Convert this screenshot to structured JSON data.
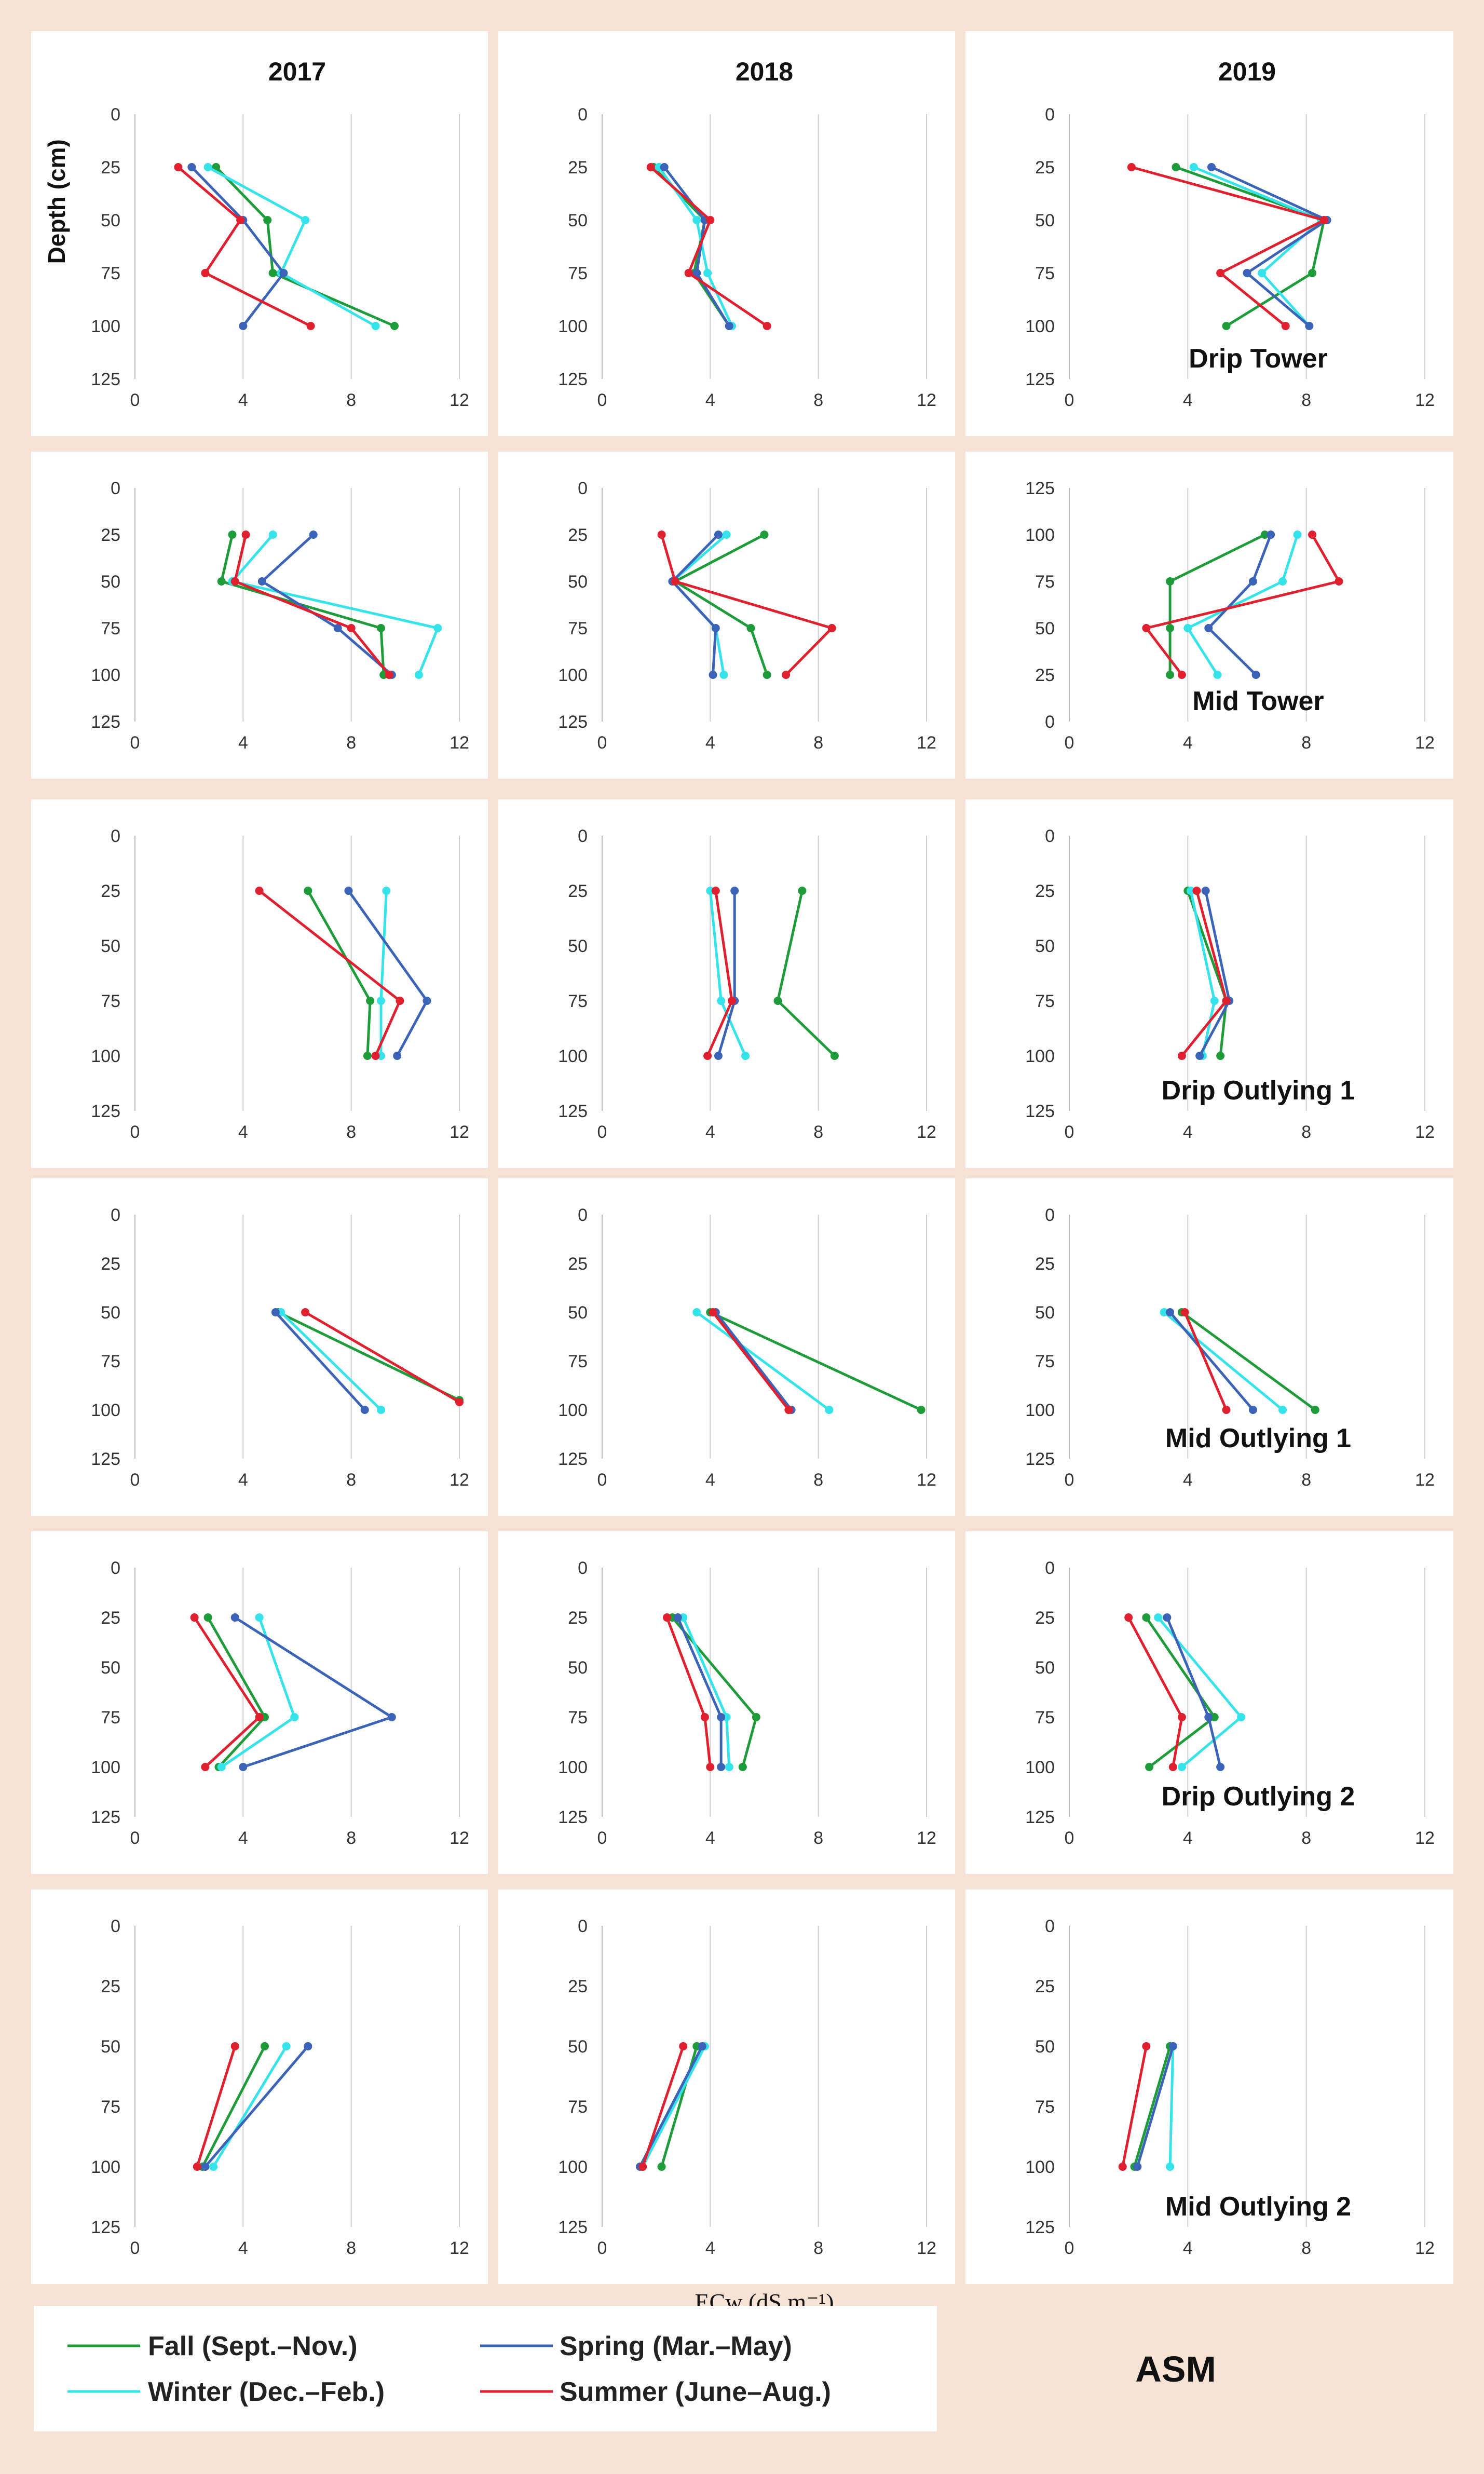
{
  "chart_data": {
    "type": "line",
    "title": "ASM",
    "xlabel": "ECw  (dS.m⁻¹)",
    "ylabel": "Depth (cm)",
    "xlim": [
      0,
      12
    ],
    "xticks": [
      "0",
      "4",
      "8",
      "12"
    ],
    "yticks": [
      "0",
      "25",
      "50",
      "75",
      "100",
      "125"
    ],
    "yticks_inverted": [
      "125",
      "100",
      "75",
      "50",
      "25",
      "0"
    ],
    "years": [
      "2017",
      "2018",
      "2019"
    ],
    "series_names": [
      "Fall (Sept.–Nov.)",
      "Winter (Dec.–Feb.)",
      "Spring (Mar.–May)",
      "Summer (June–Aug.)"
    ],
    "colors": {
      "fall": "#1e9c3a",
      "winter": "#35e3ea",
      "spring": "#3b64b8",
      "summer": "#e0202e"
    },
    "sites": [
      "Drip Tower",
      "Mid Tower",
      "Drip Outlying 1",
      "Mid Outlying 1",
      "Drip Outlying 2",
      "Mid Outlying 2"
    ],
    "panels": [
      {
        "site": "Drip Tower",
        "year": "2017",
        "label": "",
        "fall": [
          [
            3.0,
            25
          ],
          [
            4.9,
            50
          ],
          [
            5.1,
            75
          ],
          [
            9.6,
            100
          ]
        ],
        "winter": [
          [
            2.7,
            25
          ],
          [
            6.3,
            50
          ],
          [
            5.4,
            75
          ],
          [
            8.9,
            100
          ]
        ],
        "spring": [
          [
            2.1,
            25
          ],
          [
            4.0,
            50
          ],
          [
            5.5,
            75
          ],
          [
            4.0,
            100
          ]
        ],
        "summer": [
          [
            1.6,
            25
          ],
          [
            3.9,
            50
          ],
          [
            2.6,
            75
          ],
          [
            6.5,
            100
          ]
        ]
      },
      {
        "site": "Drip Tower",
        "year": "2018",
        "label": "",
        "fall": [
          [
            1.9,
            25
          ],
          [
            3.8,
            50
          ],
          [
            3.4,
            75
          ],
          [
            4.7,
            100
          ]
        ],
        "winter": [
          [
            2.1,
            25
          ],
          [
            3.5,
            50
          ],
          [
            3.9,
            75
          ],
          [
            4.8,
            100
          ]
        ],
        "spring": [
          [
            2.3,
            25
          ],
          [
            3.8,
            50
          ],
          [
            3.5,
            75
          ],
          [
            4.7,
            100
          ]
        ],
        "summer": [
          [
            1.8,
            25
          ],
          [
            4.0,
            50
          ],
          [
            3.2,
            75
          ],
          [
            6.1,
            100
          ]
        ]
      },
      {
        "site": "Drip Tower",
        "year": "2019",
        "label": "Drip Tower",
        "fall": [
          [
            3.6,
            25
          ],
          [
            8.6,
            50
          ],
          [
            8.2,
            75
          ],
          [
            5.3,
            100
          ]
        ],
        "winter": [
          [
            4.2,
            25
          ],
          [
            8.5,
            50
          ],
          [
            6.5,
            75
          ],
          [
            8.1,
            100
          ]
        ],
        "spring": [
          [
            4.8,
            25
          ],
          [
            8.7,
            50
          ],
          [
            6.0,
            75
          ],
          [
            8.1,
            100
          ]
        ],
        "summer": [
          [
            2.1,
            25
          ],
          [
            8.6,
            50
          ],
          [
            5.1,
            75
          ],
          [
            7.3,
            100
          ]
        ]
      },
      {
        "site": "Mid Tower",
        "year": "2017",
        "label": "",
        "fall": [
          [
            3.6,
            25
          ],
          [
            3.2,
            50
          ],
          [
            9.1,
            75
          ],
          [
            9.2,
            100
          ]
        ],
        "winter": [
          [
            5.1,
            25
          ],
          [
            3.6,
            50
          ],
          [
            11.2,
            75
          ],
          [
            10.5,
            100
          ]
        ],
        "spring": [
          [
            6.6,
            25
          ],
          [
            4.7,
            50
          ],
          [
            7.5,
            75
          ],
          [
            9.5,
            100
          ]
        ],
        "summer": [
          [
            4.1,
            25
          ],
          [
            3.7,
            50
          ],
          [
            8.0,
            75
          ],
          [
            9.4,
            100
          ]
        ]
      },
      {
        "site": "Mid Tower",
        "year": "2018",
        "label": "",
        "fall": [
          [
            6.0,
            25
          ],
          [
            2.7,
            50
          ],
          [
            5.5,
            75
          ],
          [
            6.1,
            100
          ]
        ],
        "winter": [
          [
            4.6,
            25
          ],
          [
            2.6,
            50
          ],
          [
            4.2,
            75
          ],
          [
            4.5,
            100
          ]
        ],
        "spring": [
          [
            4.3,
            25
          ],
          [
            2.6,
            50
          ],
          [
            4.2,
            75
          ],
          [
            4.1,
            100
          ]
        ],
        "summer": [
          [
            2.2,
            25
          ],
          [
            2.7,
            50
          ],
          [
            8.5,
            75
          ],
          [
            6.8,
            100
          ]
        ]
      },
      {
        "site": "Mid Tower",
        "year": "2019",
        "label": "Mid Tower",
        "inverted": true,
        "fall": [
          [
            3.4,
            25
          ],
          [
            3.4,
            50
          ],
          [
            3.4,
            75
          ],
          [
            6.6,
            100
          ]
        ],
        "winter": [
          [
            5.0,
            25
          ],
          [
            4.0,
            50
          ],
          [
            7.2,
            75
          ],
          [
            7.7,
            100
          ]
        ],
        "spring": [
          [
            6.3,
            25
          ],
          [
            4.7,
            50
          ],
          [
            6.2,
            75
          ],
          [
            6.8,
            100
          ]
        ],
        "summer": [
          [
            3.8,
            25
          ],
          [
            2.6,
            50
          ],
          [
            9.1,
            75
          ],
          [
            8.2,
            100
          ]
        ]
      },
      {
        "site": "Drip Outlying 1",
        "year": "2017",
        "label": "",
        "fall": [
          [
            6.4,
            25
          ],
          [
            8.7,
            75
          ],
          [
            8.6,
            100
          ]
        ],
        "winter": [
          [
            9.3,
            25
          ],
          [
            9.1,
            75
          ],
          [
            9.1,
            100
          ]
        ],
        "spring": [
          [
            7.9,
            25
          ],
          [
            10.8,
            75
          ],
          [
            9.7,
            100
          ]
        ],
        "summer": [
          [
            4.6,
            25
          ],
          [
            9.8,
            75
          ],
          [
            8.9,
            100
          ]
        ]
      },
      {
        "site": "Drip Outlying 1",
        "year": "2018",
        "label": "",
        "fall": [
          [
            7.4,
            25
          ],
          [
            6.5,
            75
          ],
          [
            8.6,
            100
          ]
        ],
        "winter": [
          [
            4.0,
            25
          ],
          [
            4.4,
            75
          ],
          [
            5.3,
            100
          ]
        ],
        "spring": [
          [
            4.9,
            25
          ],
          [
            4.9,
            75
          ],
          [
            4.3,
            100
          ]
        ],
        "summer": [
          [
            4.2,
            25
          ],
          [
            4.8,
            75
          ],
          [
            3.9,
            100
          ]
        ]
      },
      {
        "site": "Drip Outlying 1",
        "year": "2019",
        "label": "Drip Outlying 1",
        "fall": [
          [
            4.0,
            25
          ],
          [
            5.3,
            75
          ],
          [
            5.1,
            100
          ]
        ],
        "winter": [
          [
            4.1,
            25
          ],
          [
            4.9,
            75
          ],
          [
            4.5,
            100
          ]
        ],
        "spring": [
          [
            4.6,
            25
          ],
          [
            5.4,
            75
          ],
          [
            4.4,
            100
          ]
        ],
        "summer": [
          [
            4.3,
            25
          ],
          [
            5.3,
            75
          ],
          [
            3.8,
            100
          ]
        ]
      },
      {
        "site": "Mid Outlying 1",
        "year": "2017",
        "label": "",
        "fall": [
          [
            5.3,
            50
          ],
          [
            12.0,
            95
          ]
        ],
        "winter": [
          [
            5.4,
            50
          ],
          [
            9.1,
            100
          ]
        ],
        "spring": [
          [
            5.2,
            50
          ],
          [
            8.5,
            100
          ]
        ],
        "summer": [
          [
            6.3,
            50
          ],
          [
            12.0,
            96
          ]
        ]
      },
      {
        "site": "Mid Outlying 1",
        "year": "2018",
        "label": "",
        "fall": [
          [
            4.0,
            50
          ],
          [
            11.8,
            100
          ]
        ],
        "winter": [
          [
            3.5,
            50
          ],
          [
            8.4,
            100
          ]
        ],
        "spring": [
          [
            4.2,
            50
          ],
          [
            7.0,
            100
          ]
        ],
        "summer": [
          [
            4.1,
            50
          ],
          [
            6.9,
            100
          ]
        ]
      },
      {
        "site": "Mid Outlying 1",
        "year": "2019",
        "label": "Mid Outlying 1",
        "fall": [
          [
            3.8,
            50
          ],
          [
            8.3,
            100
          ]
        ],
        "winter": [
          [
            3.2,
            50
          ],
          [
            7.2,
            100
          ]
        ],
        "spring": [
          [
            3.4,
            50
          ],
          [
            6.2,
            100
          ]
        ],
        "summer": [
          [
            3.9,
            50
          ],
          [
            5.3,
            100
          ]
        ]
      },
      {
        "site": "Drip Outlying 2",
        "year": "2017",
        "label": "",
        "fall": [
          [
            2.7,
            25
          ],
          [
            4.8,
            75
          ],
          [
            3.1,
            100
          ]
        ],
        "winter": [
          [
            4.6,
            25
          ],
          [
            5.9,
            75
          ],
          [
            3.2,
            100
          ]
        ],
        "spring": [
          [
            3.7,
            25
          ],
          [
            9.5,
            75
          ],
          [
            4.0,
            100
          ]
        ],
        "summer": [
          [
            2.2,
            25
          ],
          [
            4.6,
            75
          ],
          [
            2.6,
            100
          ]
        ]
      },
      {
        "site": "Drip Outlying 2",
        "year": "2018",
        "label": "",
        "fall": [
          [
            2.6,
            25
          ],
          [
            5.7,
            75
          ],
          [
            5.2,
            100
          ]
        ],
        "winter": [
          [
            3.0,
            25
          ],
          [
            4.6,
            75
          ],
          [
            4.7,
            100
          ]
        ],
        "spring": [
          [
            2.8,
            25
          ],
          [
            4.4,
            75
          ],
          [
            4.4,
            100
          ]
        ],
        "summer": [
          [
            2.4,
            25
          ],
          [
            3.8,
            75
          ],
          [
            4.0,
            100
          ]
        ]
      },
      {
        "site": "Drip Outlying 2",
        "year": "2019",
        "label": "Drip Outlying 2",
        "fall": [
          [
            2.6,
            25
          ],
          [
            4.9,
            75
          ],
          [
            2.7,
            100
          ]
        ],
        "winter": [
          [
            3.0,
            25
          ],
          [
            5.8,
            75
          ],
          [
            3.8,
            100
          ]
        ],
        "spring": [
          [
            3.3,
            25
          ],
          [
            4.7,
            75
          ],
          [
            5.1,
            100
          ]
        ],
        "summer": [
          [
            2.0,
            25
          ],
          [
            3.8,
            75
          ],
          [
            3.5,
            100
          ]
        ]
      },
      {
        "site": "Mid Outlying 2",
        "year": "2017",
        "label": "",
        "fall": [
          [
            4.8,
            50
          ],
          [
            2.5,
            100
          ]
        ],
        "winter": [
          [
            5.6,
            50
          ],
          [
            2.9,
            100
          ]
        ],
        "spring": [
          [
            6.4,
            50
          ],
          [
            2.6,
            100
          ]
        ],
        "summer": [
          [
            3.7,
            50
          ],
          [
            2.3,
            100
          ]
        ]
      },
      {
        "site": "Mid Outlying 2",
        "year": "2018",
        "label": "",
        "fall": [
          [
            3.5,
            50
          ],
          [
            2.2,
            100
          ]
        ],
        "winter": [
          [
            3.8,
            50
          ],
          [
            1.5,
            100
          ]
        ],
        "spring": [
          [
            3.7,
            50
          ],
          [
            1.4,
            100
          ]
        ],
        "summer": [
          [
            3.0,
            50
          ],
          [
            1.5,
            100
          ]
        ]
      },
      {
        "site": "Mid Outlying 2",
        "year": "2019",
        "label": "Mid Outlying 2",
        "fall": [
          [
            3.4,
            50
          ],
          [
            2.2,
            100
          ]
        ],
        "winter": [
          [
            3.5,
            50
          ],
          [
            3.4,
            100
          ]
        ],
        "spring": [
          [
            3.5,
            50
          ],
          [
            2.3,
            100
          ]
        ],
        "summer": [
          [
            2.6,
            50
          ],
          [
            1.8,
            100
          ]
        ]
      }
    ]
  },
  "legend": {
    "fall": "Fall (Sept.–Nov.)",
    "winter": "Winter (Dec.–Feb.)",
    "spring": "Spring (Mar.–May)",
    "summer": "Summer (June–Aug.)"
  },
  "labels": {
    "ylabel": "Depth (cm)",
    "xlabel": "ECw  (dS.m⁻¹)",
    "asm": "ASM"
  }
}
